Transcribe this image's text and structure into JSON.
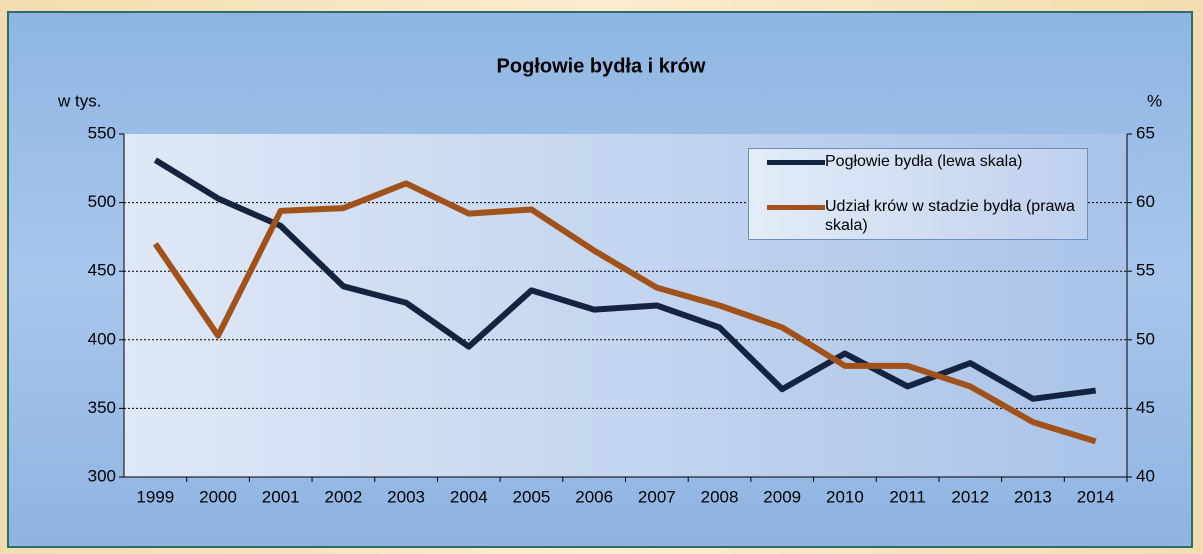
{
  "chart_data": {
    "type": "line",
    "title": "Pogłowie bydła i krów",
    "y_label": "w tys.",
    "y2_label": "%",
    "categories": [
      "1999",
      "2000",
      "2001",
      "2002",
      "2003",
      "2004",
      "2005",
      "2006",
      "2007",
      "2008",
      "2009",
      "2010",
      "2011",
      "2012",
      "2013",
      "2014"
    ],
    "series": [
      {
        "name": "Pogłowie bydła (lewa skala)",
        "color": "#14233f",
        "values": [
          531,
          503,
          483,
          439,
          427,
          395,
          436,
          422,
          425,
          409,
          364,
          390,
          366,
          383,
          357,
          363
        ]
      },
      {
        "name": "Udział krów w stadzie bydła (prawa skala)",
        "color": "#a0521a",
        "axis": "y2",
        "values": [
          57.0,
          50.3,
          59.4,
          59.6,
          61.4,
          59.2,
          59.5,
          56.5,
          53.8,
          52.5,
          50.9,
          48.1,
          48.1,
          46.6,
          44.0,
          42.6
        ]
      }
    ],
    "ylim": [
      300,
      550
    ],
    "yticks": [
      300,
      350,
      400,
      450,
      500,
      550
    ],
    "y2lim": [
      40,
      65
    ],
    "y2ticks": [
      40,
      45,
      50,
      55,
      60,
      65
    ],
    "grid": true,
    "legend": "upper right"
  }
}
